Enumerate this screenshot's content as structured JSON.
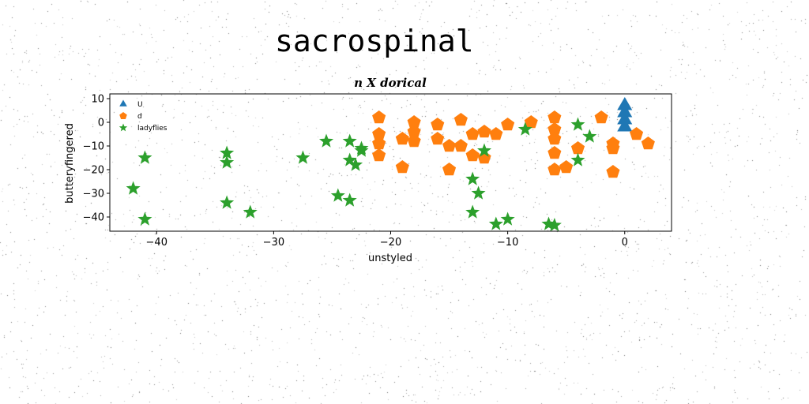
{
  "figure": {
    "suptitle": "sacrospinal"
  },
  "chart_data": {
    "type": "scatter",
    "title": "n X dorical",
    "xlabel": "unstyled",
    "ylabel": "butteryfingered",
    "xlim": [
      -44,
      4
    ],
    "ylim": [
      -46,
      12
    ],
    "xticks": [
      -40,
      -30,
      -20,
      -10,
      0
    ],
    "yticks": [
      10,
      0,
      -10,
      -20,
      -30,
      -40
    ],
    "grid": false,
    "legend_position": "top-left",
    "series": [
      {
        "name": "U",
        "marker": "triangle",
        "color": "#1f77b4",
        "points": [
          [
            0,
            7
          ],
          [
            0,
            4
          ],
          [
            0,
            1
          ],
          [
            0,
            -2
          ]
        ]
      },
      {
        "name": "d",
        "marker": "pentagon",
        "color": "#ff7f0e",
        "points": [
          [
            -21,
            2
          ],
          [
            -21,
            -5
          ],
          [
            -21,
            -9
          ],
          [
            -21,
            -14
          ],
          [
            -19,
            -7
          ],
          [
            -19,
            -19
          ],
          [
            -18,
            0
          ],
          [
            -18,
            -4
          ],
          [
            -18,
            -8
          ],
          [
            -16,
            -1
          ],
          [
            -16,
            -7
          ],
          [
            -15,
            -10
          ],
          [
            -15,
            -20
          ],
          [
            -14,
            1
          ],
          [
            -14,
            -10
          ],
          [
            -13,
            -5
          ],
          [
            -13,
            -14
          ],
          [
            -12,
            -4
          ],
          [
            -12,
            -15
          ],
          [
            -11,
            -5
          ],
          [
            -10,
            -1
          ],
          [
            -8,
            0
          ],
          [
            -6,
            2
          ],
          [
            -6,
            -3
          ],
          [
            -6,
            -7
          ],
          [
            -6,
            -13
          ],
          [
            -6,
            -20
          ],
          [
            -5,
            -19
          ],
          [
            -4,
            -11
          ],
          [
            -2,
            2
          ],
          [
            -1,
            -9
          ],
          [
            -1,
            -11
          ],
          [
            -1,
            -21
          ],
          [
            1,
            -5
          ],
          [
            2,
            -9
          ]
        ]
      },
      {
        "name": "ladyflies",
        "marker": "star",
        "color": "#2ca02c",
        "points": [
          [
            -42,
            -28
          ],
          [
            -41,
            -15
          ],
          [
            -41,
            -41
          ],
          [
            -34,
            -13
          ],
          [
            -34,
            -17
          ],
          [
            -34,
            -34
          ],
          [
            -32,
            -38
          ],
          [
            -27.5,
            -15
          ],
          [
            -25.5,
            -8
          ],
          [
            -24.5,
            -31
          ],
          [
            -23.5,
            -8
          ],
          [
            -23.5,
            -16
          ],
          [
            -23.5,
            -33
          ],
          [
            -23,
            -18
          ],
          [
            -22.5,
            -11
          ],
          [
            -22.5,
            -12
          ],
          [
            -13,
            -24
          ],
          [
            -13,
            -38
          ],
          [
            -12.5,
            -30
          ],
          [
            -12,
            -12
          ],
          [
            -11,
            -43
          ],
          [
            -10,
            -41
          ],
          [
            -8.5,
            -3
          ],
          [
            -6.5,
            -43
          ],
          [
            -6,
            -43.5
          ],
          [
            -4,
            -1
          ],
          [
            -4,
            -16
          ],
          [
            -3,
            -6
          ]
        ]
      }
    ]
  }
}
